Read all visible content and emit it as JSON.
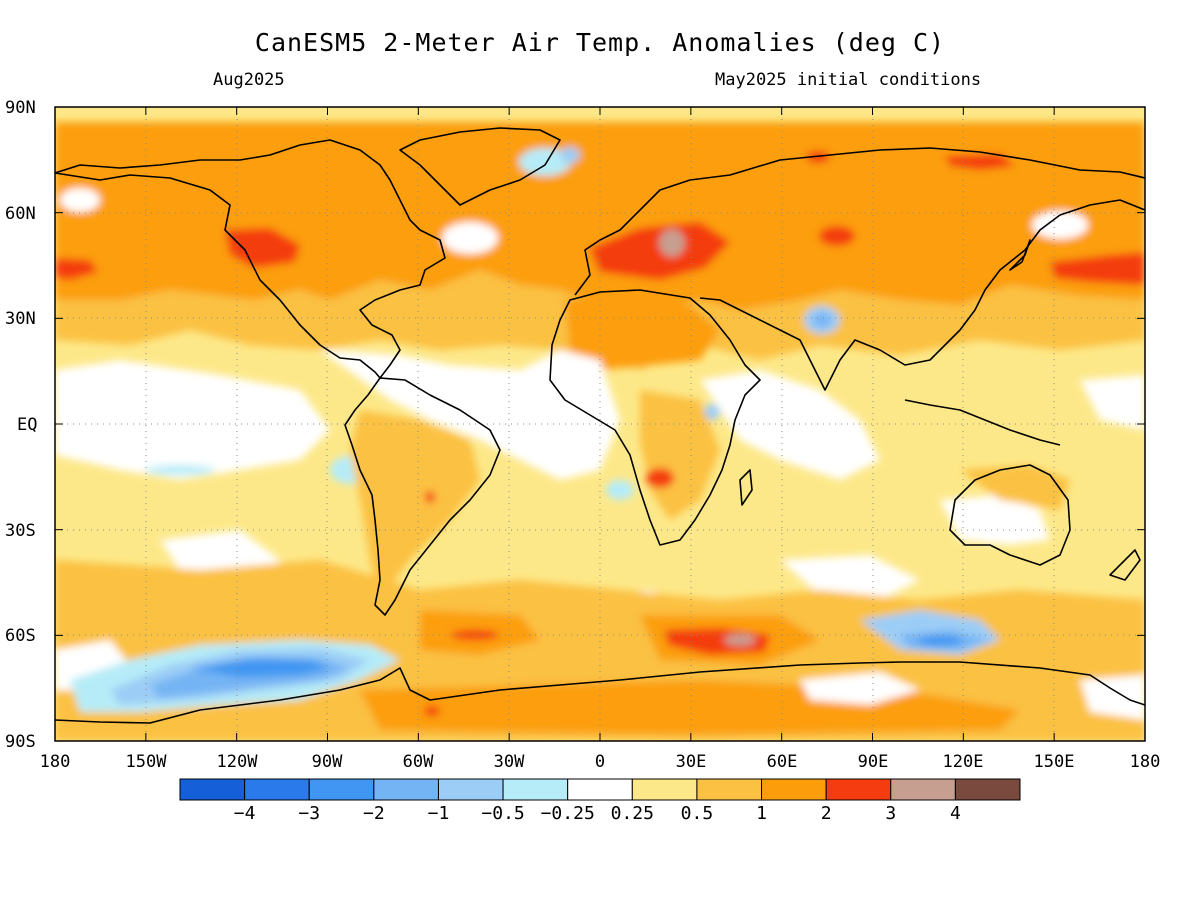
{
  "title": "CanESM5 2-Meter Air Temp. Anomalies (deg C)",
  "subtitle_left": "Aug2025",
  "subtitle_right": "May2025 initial conditions",
  "latitude_labels": [
    "90N",
    "60N",
    "30N",
    "EQ",
    "30S",
    "60S",
    "90S"
  ],
  "longitude_labels": [
    "180",
    "150W",
    "120W",
    "90W",
    "60W",
    "30W",
    "0",
    "30E",
    "60E",
    "90E",
    "120E",
    "150E",
    "180"
  ],
  "colorbar": {
    "labels": [
      "-4",
      "-3",
      "-2",
      "-1",
      "-0.5",
      "-0.25",
      "0.25",
      "0.5",
      "1",
      "2",
      "3",
      "4"
    ],
    "colors": [
      "#1560d8",
      "#2a7aec",
      "#4096f2",
      "#74b4f4",
      "#9ccdf6",
      "#b6ecf8",
      "#ffffff",
      "#fde889",
      "#fbc143",
      "#fc9e0c",
      "#f43c10",
      "#c79f91",
      "#7a4a3e"
    ]
  },
  "map_data": {
    "projection": "cylindrical-equidistant",
    "lon_range": [
      -180,
      180
    ],
    "lat_range": [
      -90,
      90
    ],
    "background_anomaly_class": "0.25 to 0.5",
    "anomaly_regions": [
      {
        "label": "Warm anomaly core, Eastern Europe / Western Russia",
        "lon": 45,
        "lat": 52,
        "value": 3.2
      },
      {
        "label": "Warm anomaly, western Canada",
        "lon": -115,
        "lat": 50,
        "value": 2.5
      },
      {
        "label": "Warm anomaly, North Pacific",
        "lon": -175,
        "lat": 45,
        "value": 2.5
      },
      {
        "label": "Warm anomaly, NW Pacific near Japan",
        "lon": 170,
        "lat": 42,
        "value": 2.5
      },
      {
        "label": "Warm anomaly, eastern Siberia coast",
        "lon": 135,
        "lat": 72,
        "value": 2.5
      },
      {
        "label": "Warm anomaly, Southern Ocean south of Africa",
        "lon": 40,
        "lat": -58,
        "value": 3.5
      },
      {
        "label": "Cold anomaly, Amundsen/Bellingshausen Sea",
        "lon": -105,
        "lat": -67,
        "value": -2.2
      },
      {
        "label": "Cold anomaly, Southern Ocean south of Australia",
        "lon": 115,
        "lat": -62,
        "value": -1.5
      },
      {
        "label": "Cool anomaly, Tibetan Plateau",
        "lon": 80,
        "lat": 30,
        "value": -0.7
      },
      {
        "label": "Near-normal, equatorial Pacific",
        "lon": -120,
        "lat": 5,
        "value": 0.1
      },
      {
        "label": "Near-normal, tropical Atlantic",
        "lon": -25,
        "lat": 15,
        "value": 0.1
      },
      {
        "label": "Near-normal, Indian Ocean",
        "lon": 70,
        "lat": -10,
        "value": 0.1
      }
    ]
  }
}
